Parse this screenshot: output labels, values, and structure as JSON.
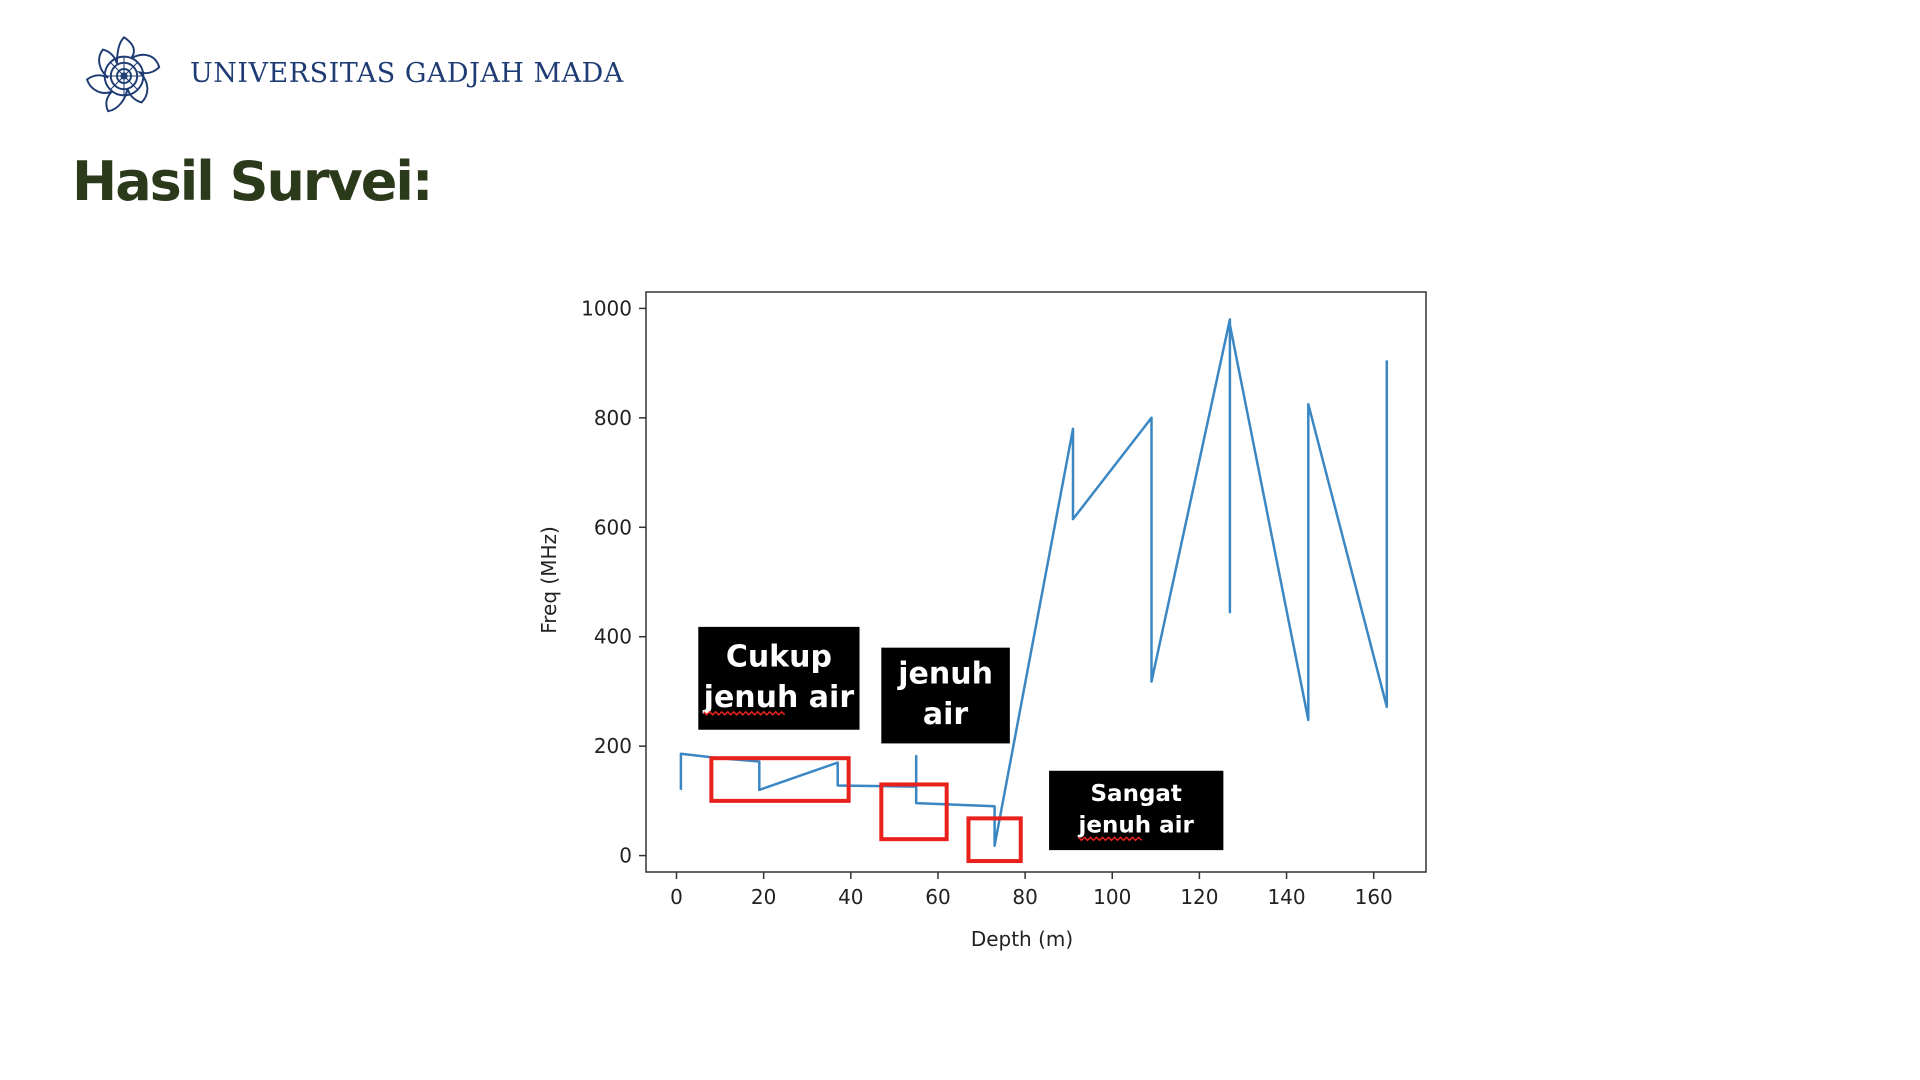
{
  "header": {
    "org_name": "UNIVERSITAS GADJAH MADA",
    "logo_icon": "ugm-seal-icon",
    "brand_color": "#1f3b73"
  },
  "slide": {
    "title": "Hasil Survei:",
    "title_color": "#2c3a1c"
  },
  "chart_data": {
    "type": "line",
    "xlabel": "Depth (m)",
    "ylabel": "Freq (MHz)",
    "xlim": [
      -7,
      172
    ],
    "ylim": [
      -30,
      1030
    ],
    "xticks": [
      0,
      20,
      40,
      60,
      80,
      100,
      120,
      140,
      160
    ],
    "yticks": [
      0,
      200,
      400,
      600,
      800,
      1000
    ],
    "grid": false,
    "line_color": "#3a87c4",
    "series": [
      {
        "x": [
          1,
          1,
          10,
          19,
          19,
          37,
          37,
          55,
          55,
          55,
          73,
          73,
          91,
          91,
          109,
          109,
          127,
          127,
          127,
          145,
          145,
          163,
          163
        ],
        "y": [
          120,
          186,
          178,
          172,
          120,
          170,
          128,
          126,
          182,
          96,
          90,
          18,
          780,
          615,
          800,
          318,
          980,
          445,
          970,
          248,
          825,
          272,
          905
        ]
      }
    ],
    "annotations": [
      {
        "lines": [
          "Cukup",
          "jenuh air"
        ],
        "box_x": [
          5,
          42
        ],
        "box_y": [
          230,
          418
        ],
        "font_size": 30,
        "squiggle_word": "jenuh"
      },
      {
        "lines": [
          "jenuh",
          "air"
        ],
        "box_x": [
          47,
          76.5
        ],
        "box_y": [
          205,
          380
        ],
        "font_size": 30,
        "squiggle_word": ""
      },
      {
        "lines": [
          "Sangat",
          "jenuh air"
        ],
        "box_x": [
          85.5,
          125.5
        ],
        "box_y": [
          10,
          155
        ],
        "font_size": 23,
        "squiggle_word": "jenuh"
      }
    ],
    "highlight_boxes": [
      {
        "x": [
          8,
          39.5
        ],
        "y": [
          100,
          178
        ]
      },
      {
        "x": [
          47,
          62
        ],
        "y": [
          30,
          130
        ]
      },
      {
        "x": [
          67,
          79
        ],
        "y": [
          -10,
          68
        ]
      }
    ],
    "highlight_color": "#e8211c"
  }
}
